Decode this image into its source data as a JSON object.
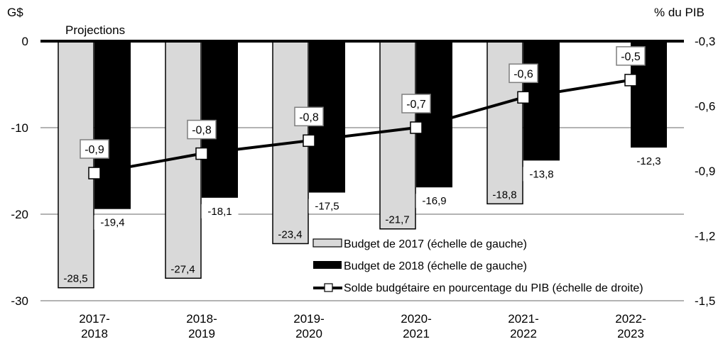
{
  "chart_data": {
    "type": "bar",
    "title": "",
    "annotation": "Projections",
    "y_left_label": "G$",
    "y_right_label": "% du PIB",
    "xlabel": "",
    "categories": [
      [
        "2017-",
        "2018"
      ],
      [
        "2018-",
        "2019"
      ],
      [
        "2019-",
        "2020"
      ],
      [
        "2020-",
        "2021"
      ],
      [
        "2021-",
        "2022"
      ],
      [
        "2022-",
        "2023"
      ]
    ],
    "y_left": {
      "min": -30,
      "max": 0,
      "ticks": [
        0,
        -10,
        -20,
        -30
      ],
      "tick_labels": [
        "0",
        "-10",
        "-20",
        "-30"
      ]
    },
    "y_right": {
      "min": -1.5,
      "max": -0.3,
      "ticks": [
        -0.3,
        -0.6,
        -0.9,
        -1.2,
        -1.5
      ],
      "tick_labels": [
        "-0,3",
        "-0,6",
        "-0,9",
        "-1,2",
        "-1,5"
      ]
    },
    "grid": true,
    "legend_position": "bottom-right",
    "series": [
      {
        "name": "Budget de 2017 (échelle de gauche)",
        "type": "bar",
        "axis": "left",
        "color": "#d9d9d9",
        "values": [
          -28.5,
          -27.4,
          -23.4,
          -21.7,
          -18.8,
          null
        ],
        "labels": [
          "-28,5",
          "-27,4",
          "-23,4",
          "-21,7",
          "-18,8",
          null
        ]
      },
      {
        "name": "Budget de 2018 (échelle de gauche)",
        "type": "bar",
        "axis": "left",
        "color": "#000000",
        "values": [
          -19.4,
          -18.1,
          -17.5,
          -16.9,
          -13.8,
          -12.3
        ],
        "labels": [
          "-19,4",
          "-18,1",
          "-17,5",
          "-16,9",
          "-13,8",
          "-12,3"
        ]
      },
      {
        "name": "Solde budgétaire en pourcentage du PIB (échelle de droite)",
        "type": "line",
        "axis": "right",
        "color": "#000000",
        "values": [
          -0.91,
          -0.82,
          -0.76,
          -0.7,
          -0.56,
          -0.48
        ],
        "labels": [
          "-0,9",
          "-0,8",
          "-0,8",
          "-0,7",
          "-0,6",
          "-0,5"
        ]
      }
    ]
  }
}
